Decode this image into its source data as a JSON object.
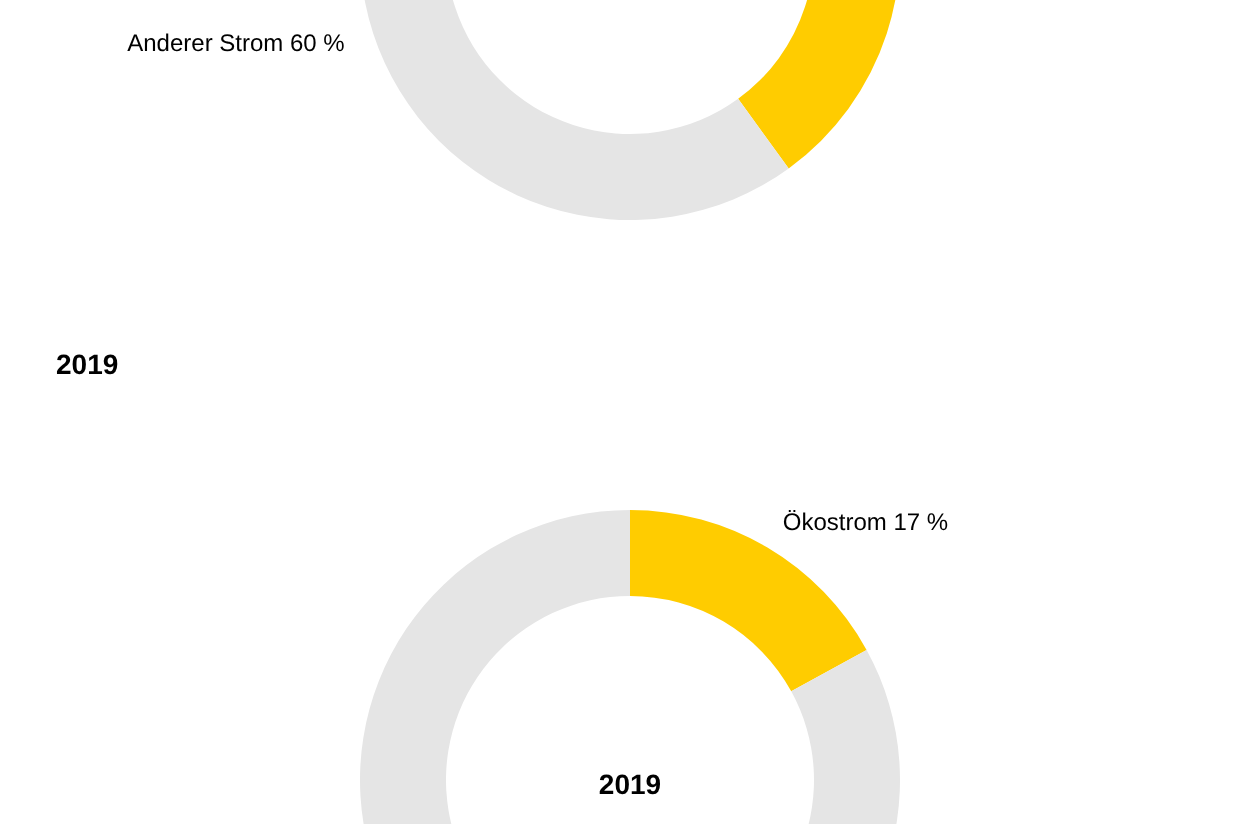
{
  "chart_data": [
    {
      "type": "donut",
      "categories": [
        null,
        "Anderer Strom"
      ],
      "values": [
        40,
        60
      ],
      "colors": [
        "#ffcc00",
        "#e5e5e5"
      ],
      "value_labels": [
        null,
        "60 %"
      ]
    },
    {
      "type": "donut",
      "title": "2019",
      "categories": [
        "Ökostrom",
        null
      ],
      "values": [
        17,
        83
      ],
      "colors": [
        "#ffcc00",
        "#e5e5e5"
      ],
      "value_labels": [
        "17 %",
        null
      ],
      "annotations": [
        "2019"
      ]
    }
  ]
}
